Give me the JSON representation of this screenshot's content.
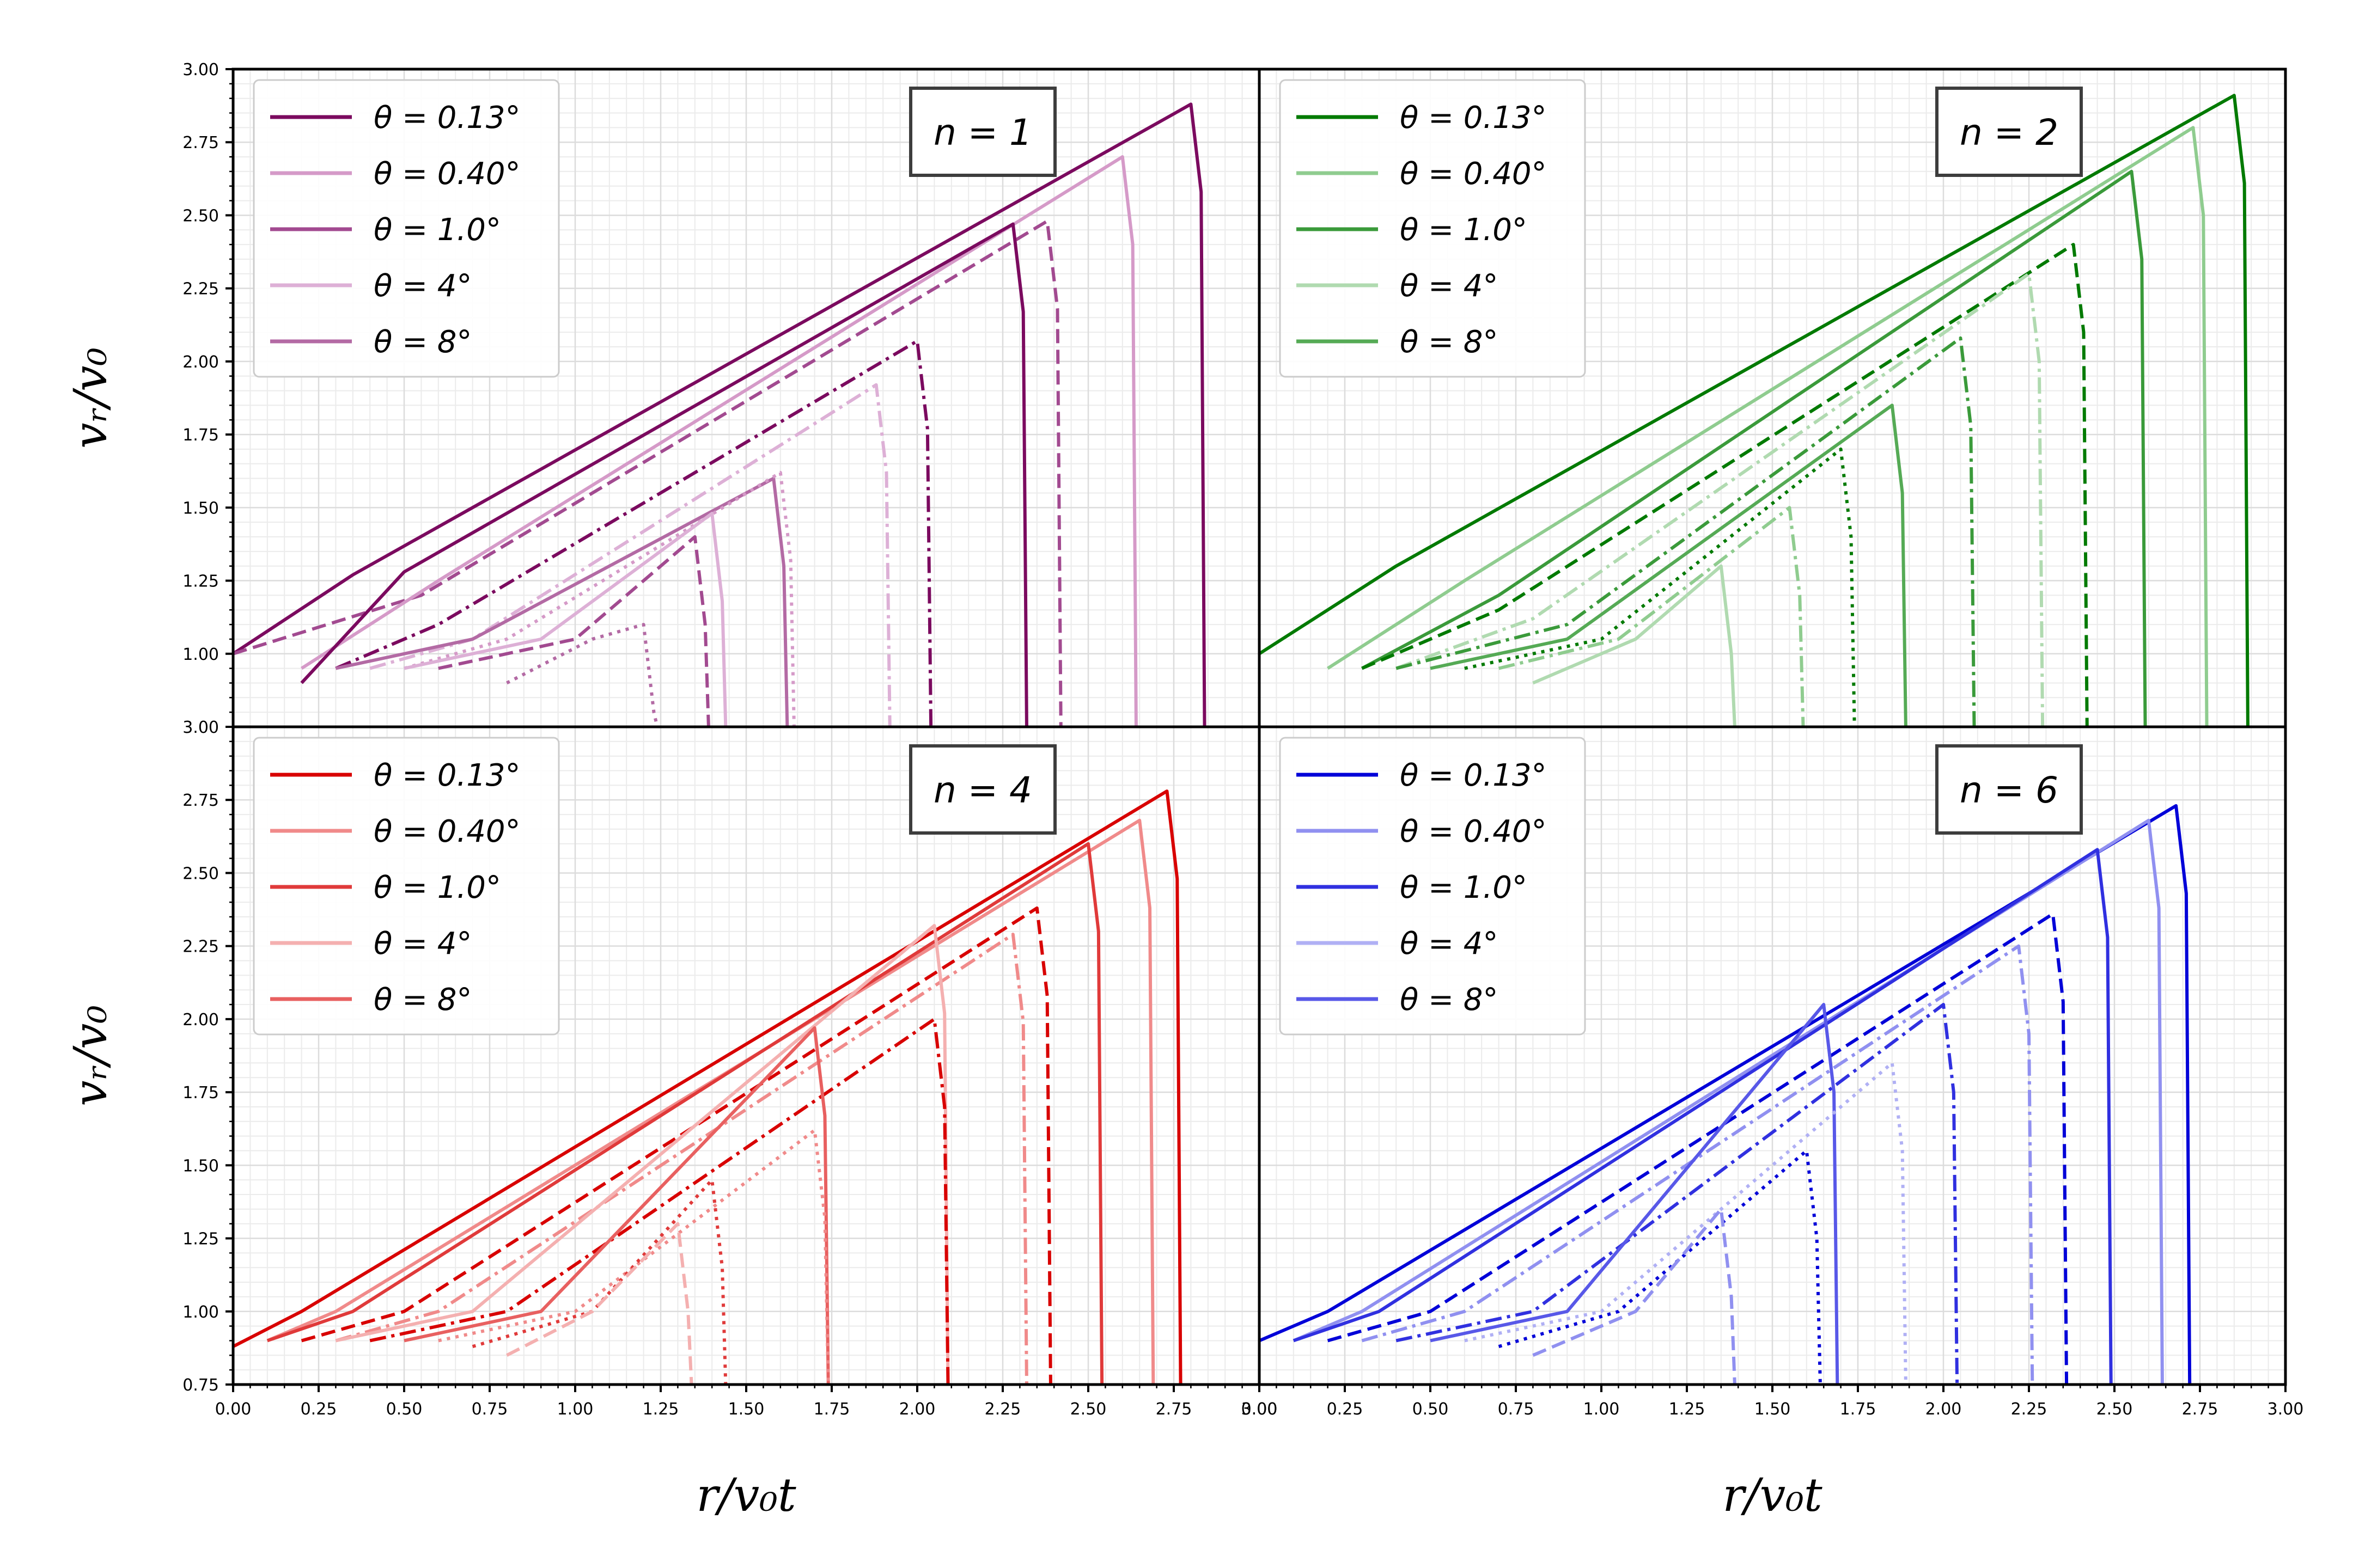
{
  "figure": {
    "x_label": "r/v₀t",
    "y_label": "vᵣ/v₀",
    "xlim": [
      0,
      3.0
    ],
    "ylim": [
      0.75,
      3.0
    ]
  },
  "chart_data": [
    {
      "type": "line",
      "panel_label": "n = 1",
      "legend_placement": "top-left",
      "grid": true,
      "xlim": [
        0,
        3.0
      ],
      "ylim": [
        0.75,
        3.0
      ],
      "x_ticks": [
        "0.00",
        "0.25",
        "0.50",
        "0.75",
        "1.00",
        "1.25",
        "1.50",
        "1.75",
        "2.00",
        "2.25",
        "2.50",
        "2.75",
        "3.00"
      ],
      "y_ticks": [
        "3.00",
        "2.75",
        "2.50",
        "2.25",
        "2.00",
        "1.75",
        "1.50",
        "1.25",
        "1.00"
      ],
      "legend": [
        "θ = 0.13°",
        "θ = 0.40°",
        "θ = 1.0°",
        "θ = 4°",
        "θ = 8°"
      ],
      "colors": [
        "#7b0a5f",
        "#d59ac8",
        "#a24a90",
        "#ddb0d6",
        "#b36aa4"
      ],
      "series": [
        {
          "theta_index": 0,
          "style": "solid",
          "points": [
            [
              0,
              1.0
            ],
            [
              0.35,
              1.27
            ],
            [
              2.8,
              2.88
            ]
          ]
        },
        {
          "theta_index": 2,
          "style": "dashed",
          "points": [
            [
              0,
              1.0
            ],
            [
              0.55,
              1.2
            ],
            [
              2.38,
              2.48
            ]
          ]
        },
        {
          "theta_index": 1,
          "style": "solid",
          "points": [
            [
              0.2,
              0.95
            ],
            [
              0.6,
              1.25
            ],
            [
              2.6,
              2.7
            ]
          ]
        },
        {
          "theta_index": 0,
          "style": "solid",
          "points": [
            [
              0.2,
              0.9
            ],
            [
              0.5,
              1.28
            ],
            [
              2.28,
              2.47
            ]
          ]
        },
        {
          "theta_index": 0,
          "style": "dashdot",
          "points": [
            [
              0.3,
              0.95
            ],
            [
              0.6,
              1.1
            ],
            [
              2.0,
              2.07
            ]
          ]
        },
        {
          "theta_index": 3,
          "style": "dashdot",
          "points": [
            [
              0.4,
              0.95
            ],
            [
              0.7,
              1.05
            ],
            [
              1.88,
              1.92
            ]
          ]
        },
        {
          "theta_index": 4,
          "style": "solid",
          "points": [
            [
              0.3,
              0.95
            ],
            [
              0.7,
              1.05
            ],
            [
              1.58,
              1.6
            ]
          ]
        },
        {
          "theta_index": 1,
          "style": "dotted",
          "points": [
            [
              0.5,
              0.95
            ],
            [
              0.8,
              1.05
            ],
            [
              1.6,
              1.62
            ]
          ]
        },
        {
          "theta_index": 3,
          "style": "solid",
          "points": [
            [
              0.5,
              0.95
            ],
            [
              0.9,
              1.05
            ],
            [
              1.4,
              1.48
            ]
          ]
        },
        {
          "theta_index": 2,
          "style": "dashed",
          "points": [
            [
              0.6,
              0.95
            ],
            [
              1.0,
              1.05
            ],
            [
              1.35,
              1.4
            ]
          ]
        },
        {
          "theta_index": 4,
          "style": "dotted",
          "points": [
            [
              0.8,
              0.9
            ],
            [
              1.05,
              1.05
            ],
            [
              1.2,
              1.1
            ]
          ]
        }
      ]
    },
    {
      "type": "line",
      "panel_label": "n = 2",
      "legend_placement": "top-left",
      "grid": true,
      "xlim": [
        0,
        3.0
      ],
      "ylim": [
        0.75,
        3.0
      ],
      "x_ticks": [
        "0.00",
        "0.25",
        "0.50",
        "0.75",
        "1.00",
        "1.25",
        "1.50",
        "1.75",
        "2.00",
        "2.25",
        "2.50",
        "2.75",
        "3.00"
      ],
      "legend": [
        "θ = 0.13°",
        "θ = 0.40°",
        "θ = 1.0°",
        "θ = 4°",
        "θ = 8°"
      ],
      "colors": [
        "#007a00",
        "#8fcc8f",
        "#3a9a3a",
        "#b0dab0",
        "#55aa55"
      ],
      "series": [
        {
          "theta_index": 0,
          "style": "solid",
          "points": [
            [
              0,
              1.0
            ],
            [
              0.4,
              1.3
            ],
            [
              2.85,
              2.91
            ]
          ]
        },
        {
          "theta_index": 1,
          "style": "solid",
          "points": [
            [
              0.2,
              0.95
            ],
            [
              0.6,
              1.25
            ],
            [
              2.73,
              2.8
            ]
          ]
        },
        {
          "theta_index": 2,
          "style": "solid",
          "points": [
            [
              0.3,
              0.95
            ],
            [
              0.7,
              1.2
            ],
            [
              2.55,
              2.65
            ]
          ]
        },
        {
          "theta_index": 0,
          "style": "dashed",
          "points": [
            [
              0.3,
              0.95
            ],
            [
              0.7,
              1.15
            ],
            [
              2.38,
              2.4
            ]
          ]
        },
        {
          "theta_index": 3,
          "style": "dashdot",
          "points": [
            [
              0.4,
              0.95
            ],
            [
              0.8,
              1.12
            ],
            [
              2.25,
              2.3
            ]
          ]
        },
        {
          "theta_index": 2,
          "style": "dashdot",
          "points": [
            [
              0.4,
              0.95
            ],
            [
              0.9,
              1.1
            ],
            [
              2.05,
              2.08
            ]
          ]
        },
        {
          "theta_index": 4,
          "style": "solid",
          "points": [
            [
              0.5,
              0.95
            ],
            [
              0.9,
              1.05
            ],
            [
              1.85,
              1.85
            ]
          ]
        },
        {
          "theta_index": 0,
          "style": "dotted",
          "points": [
            [
              0.6,
              0.95
            ],
            [
              1.0,
              1.05
            ],
            [
              1.7,
              1.7
            ]
          ]
        },
        {
          "theta_index": 1,
          "style": "dashdot",
          "points": [
            [
              0.7,
              0.95
            ],
            [
              1.05,
              1.05
            ],
            [
              1.55,
              1.5
            ]
          ]
        },
        {
          "theta_index": 3,
          "style": "solid",
          "points": [
            [
              0.8,
              0.9
            ],
            [
              1.1,
              1.05
            ],
            [
              1.35,
              1.3
            ]
          ]
        }
      ]
    },
    {
      "type": "line",
      "panel_label": "n = 4",
      "legend_placement": "top-left",
      "grid": true,
      "xlim": [
        0,
        3.0
      ],
      "ylim": [
        0.75,
        3.0
      ],
      "x_ticks": [
        "0.00",
        "0.25",
        "0.50",
        "0.75",
        "1.00",
        "1.25",
        "1.50",
        "1.75",
        "2.00",
        "2.25",
        "2.50",
        "2.75",
        "3.00"
      ],
      "y_ticks": [
        "2.75",
        "2.50",
        "2.25",
        "2.00",
        "1.75",
        "1.50",
        "1.25",
        "1.00",
        "0.75"
      ],
      "legend": [
        "θ = 0.13°",
        "θ = 0.40°",
        "θ = 1.0°",
        "θ = 4°",
        "θ = 8°"
      ],
      "colors": [
        "#d80000",
        "#f08a8a",
        "#e03a3a",
        "#f4b0b0",
        "#e86060"
      ],
      "series": [
        {
          "theta_index": 0,
          "style": "solid",
          "points": [
            [
              0,
              0.88
            ],
            [
              0.2,
              1.0
            ],
            [
              2.73,
              2.78
            ]
          ]
        },
        {
          "theta_index": 1,
          "style": "solid",
          "points": [
            [
              0.1,
              0.9
            ],
            [
              0.3,
              1.0
            ],
            [
              2.65,
              2.68
            ]
          ]
        },
        {
          "theta_index": 2,
          "style": "solid",
          "points": [
            [
              0.1,
              0.9
            ],
            [
              0.35,
              1.0
            ],
            [
              2.5,
              2.6
            ]
          ]
        },
        {
          "theta_index": 0,
          "style": "dashed",
          "points": [
            [
              0.2,
              0.9
            ],
            [
              0.5,
              1.0
            ],
            [
              2.35,
              2.38
            ]
          ]
        },
        {
          "theta_index": 1,
          "style": "dashdot",
          "points": [
            [
              0.3,
              0.9
            ],
            [
              0.6,
              1.0
            ],
            [
              2.28,
              2.29
            ]
          ]
        },
        {
          "theta_index": 3,
          "style": "solid",
          "points": [
            [
              0.3,
              0.9
            ],
            [
              0.7,
              1.0
            ],
            [
              2.05,
              2.32
            ]
          ]
        },
        {
          "theta_index": 0,
          "style": "dashdot",
          "points": [
            [
              0.4,
              0.9
            ],
            [
              0.8,
              1.0
            ],
            [
              2.05,
              2.0
            ]
          ]
        },
        {
          "theta_index": 4,
          "style": "solid",
          "points": [
            [
              0.5,
              0.9
            ],
            [
              0.9,
              1.0
            ],
            [
              1.7,
              1.97
            ]
          ]
        },
        {
          "theta_index": 1,
          "style": "dotted",
          "points": [
            [
              0.6,
              0.9
            ],
            [
              1.0,
              1.0
            ],
            [
              1.7,
              1.62
            ]
          ]
        },
        {
          "theta_index": 2,
          "style": "dotted",
          "points": [
            [
              0.7,
              0.88
            ],
            [
              1.05,
              1.0
            ],
            [
              1.4,
              1.45
            ]
          ]
        },
        {
          "theta_index": 3,
          "style": "dashed",
          "points": [
            [
              0.8,
              0.85
            ],
            [
              1.05,
              1.0
            ],
            [
              1.3,
              1.3
            ]
          ]
        }
      ]
    },
    {
      "type": "line",
      "panel_label": "n = 6",
      "legend_placement": "top-left",
      "grid": true,
      "xlim": [
        0,
        3.0
      ],
      "ylim": [
        0.75,
        3.0
      ],
      "x_ticks": [
        "0.00",
        "0.25",
        "0.50",
        "0.75",
        "1.00",
        "1.25",
        "1.50",
        "1.75",
        "2.00",
        "2.25",
        "2.50",
        "2.75",
        "3.00"
      ],
      "legend": [
        "θ = 0.13°",
        "θ = 0.40°",
        "θ = 1.0°",
        "θ = 4°",
        "θ = 8°"
      ],
      "colors": [
        "#0000d8",
        "#9090f0",
        "#3030e0",
        "#b0b0f4",
        "#5858e8"
      ],
      "series": [
        {
          "theta_index": 0,
          "style": "solid",
          "points": [
            [
              0,
              0.9
            ],
            [
              0.2,
              1.0
            ],
            [
              2.68,
              2.73
            ]
          ]
        },
        {
          "theta_index": 1,
          "style": "solid",
          "points": [
            [
              0.1,
              0.9
            ],
            [
              0.3,
              1.0
            ],
            [
              2.6,
              2.68
            ]
          ]
        },
        {
          "theta_index": 2,
          "style": "solid",
          "points": [
            [
              0.1,
              0.9
            ],
            [
              0.35,
              1.0
            ],
            [
              2.45,
              2.58
            ]
          ]
        },
        {
          "theta_index": 0,
          "style": "dashed",
          "points": [
            [
              0.2,
              0.9
            ],
            [
              0.5,
              1.0
            ],
            [
              2.32,
              2.36
            ]
          ]
        },
        {
          "theta_index": 1,
          "style": "dashdot",
          "points": [
            [
              0.3,
              0.9
            ],
            [
              0.6,
              1.0
            ],
            [
              2.22,
              2.25
            ]
          ]
        },
        {
          "theta_index": 2,
          "style": "dashdot",
          "points": [
            [
              0.4,
              0.9
            ],
            [
              0.8,
              1.0
            ],
            [
              2.0,
              2.05
            ]
          ]
        },
        {
          "theta_index": 4,
          "style": "solid",
          "points": [
            [
              0.5,
              0.9
            ],
            [
              0.9,
              1.0
            ],
            [
              1.65,
              2.05
            ]
          ]
        },
        {
          "theta_index": 3,
          "style": "dotted",
          "points": [
            [
              0.6,
              0.9
            ],
            [
              1.0,
              1.0
            ],
            [
              1.85,
              1.85
            ]
          ]
        },
        {
          "theta_index": 0,
          "style": "dotted",
          "points": [
            [
              0.7,
              0.88
            ],
            [
              1.05,
              1.0
            ],
            [
              1.6,
              1.55
            ]
          ]
        },
        {
          "theta_index": 1,
          "style": "dashed",
          "points": [
            [
              0.8,
              0.85
            ],
            [
              1.1,
              1.0
            ],
            [
              1.35,
              1.35
            ]
          ]
        }
      ]
    }
  ]
}
